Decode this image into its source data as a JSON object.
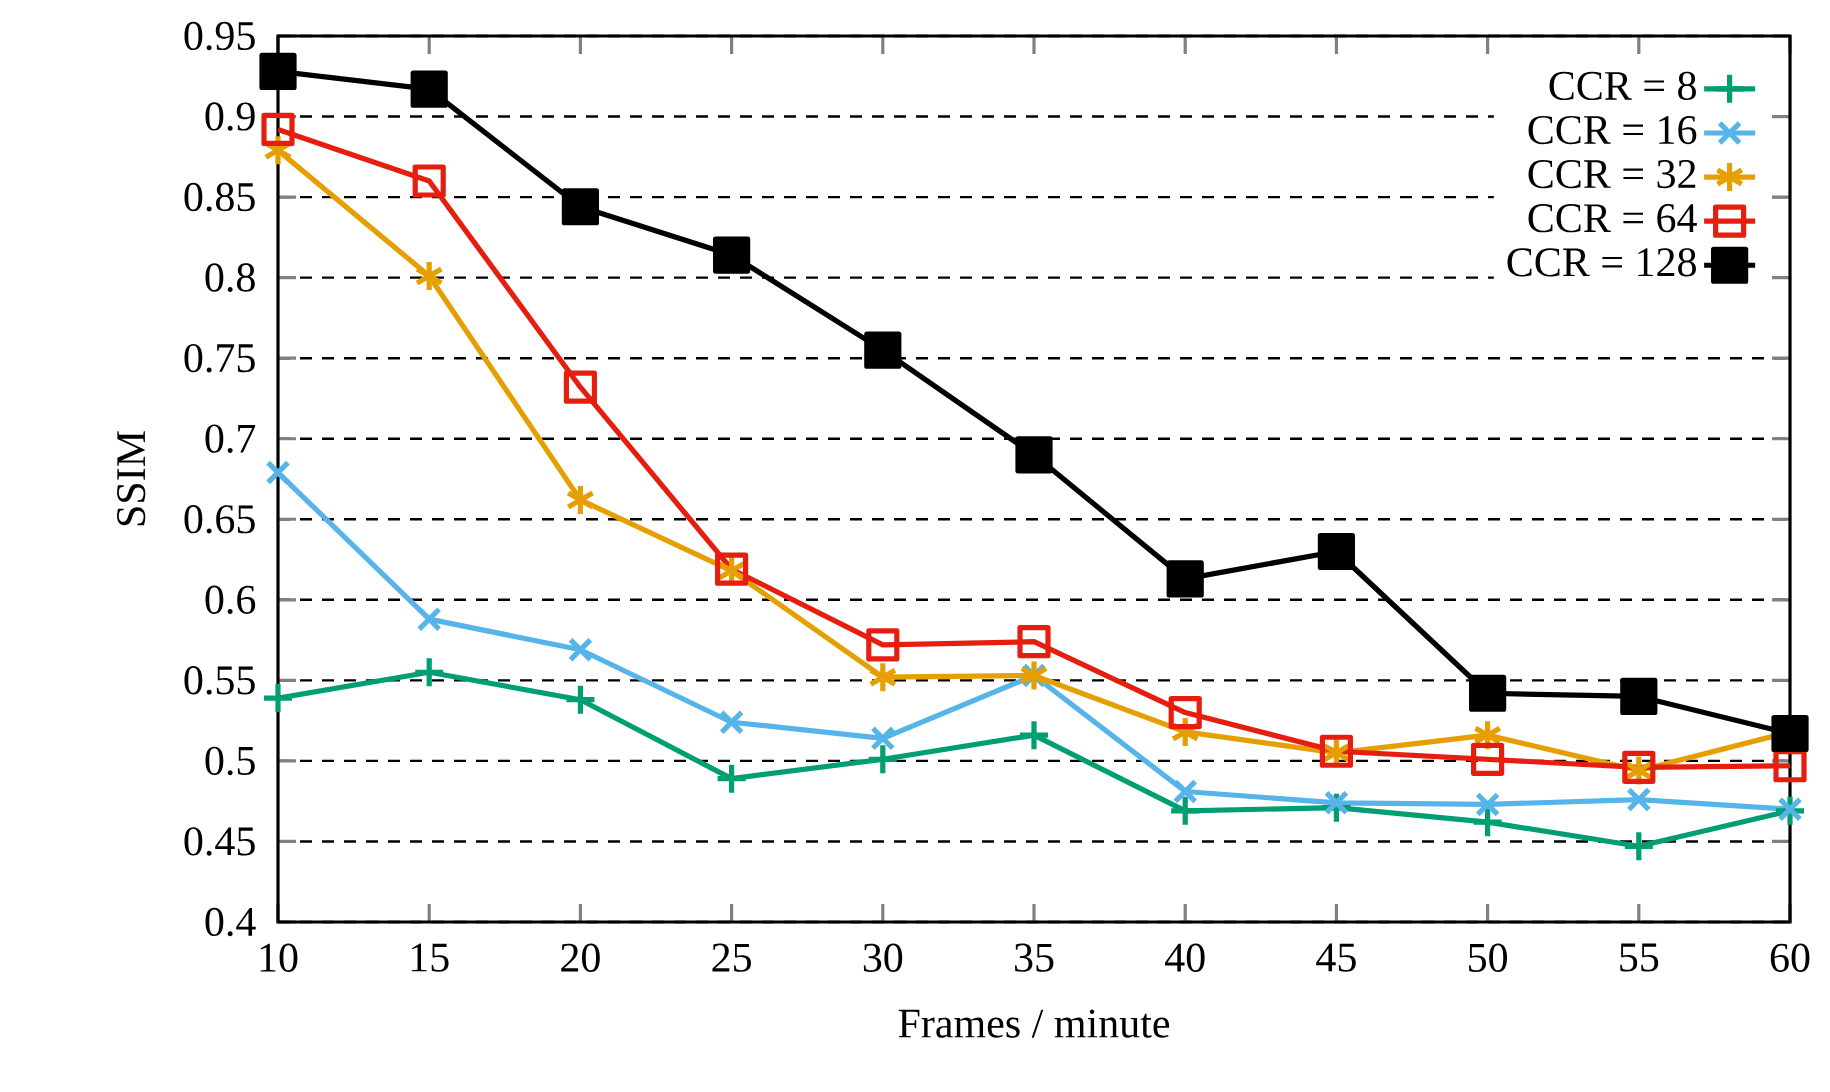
{
  "chart_data": {
    "type": "line",
    "xlabel": "Frames / minute",
    "ylabel": "SSIM",
    "x": [
      10,
      15,
      20,
      25,
      30,
      35,
      40,
      45,
      50,
      55,
      60
    ],
    "xlim": [
      10,
      60
    ],
    "xticks": [
      10,
      15,
      20,
      25,
      30,
      35,
      40,
      45,
      50,
      55,
      60
    ],
    "ylim": [
      0.4,
      0.95
    ],
    "yticks": [
      0.4,
      0.45,
      0.5,
      0.55,
      0.6,
      0.65,
      0.7,
      0.75,
      0.8,
      0.85,
      0.9,
      0.95
    ],
    "grid": "y",
    "legend": "top right",
    "line_style": "solid",
    "series": [
      {
        "name": "CCR = 8",
        "color": "#009e73",
        "marker": "cross",
        "values": [
          0.539,
          0.555,
          0.538,
          0.489,
          0.501,
          0.516,
          0.469,
          0.471,
          0.462,
          0.447,
          0.469
        ]
      },
      {
        "name": "CCR = 16",
        "color": "#56b4e9",
        "marker": "cross",
        "values": [
          0.679,
          0.588,
          0.569,
          0.524,
          0.514,
          0.553,
          0.481,
          0.474,
          0.473,
          0.476,
          0.47
        ]
      },
      {
        "name": "CCR = 32",
        "color": "#e69f00",
        "marker": "cross",
        "values": [
          0.879,
          0.801,
          0.662,
          0.618,
          0.552,
          0.553,
          0.518,
          0.505,
          0.516,
          0.494,
          0.518
        ]
      },
      {
        "name": "CCR = 64",
        "color": "#e51e10",
        "marker": "square",
        "values": [
          0.892,
          0.86,
          0.732,
          0.619,
          0.572,
          0.574,
          0.53,
          0.506,
          0.501,
          0.496,
          0.497
        ]
      },
      {
        "name": "CCR = 128",
        "color": "#000000",
        "marker": "square",
        "values": [
          0.928,
          0.917,
          0.844,
          0.814,
          0.755,
          0.69,
          0.613,
          0.63,
          0.542,
          0.54,
          0.517
        ]
      }
    ]
  }
}
